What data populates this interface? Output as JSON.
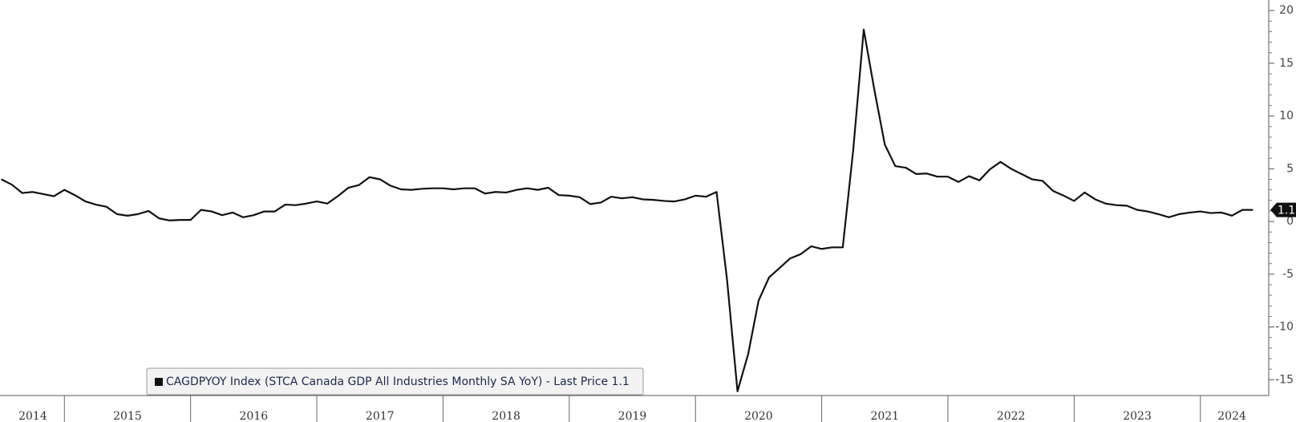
{
  "chart_data": {
    "type": "line",
    "x": [
      2014.5,
      2014.583,
      2014.667,
      2014.75,
      2014.833,
      2014.917,
      2015.0,
      2015.083,
      2015.167,
      2015.25,
      2015.333,
      2015.417,
      2015.5,
      2015.583,
      2015.667,
      2015.75,
      2015.833,
      2015.917,
      2016.0,
      2016.083,
      2016.167,
      2016.25,
      2016.333,
      2016.417,
      2016.5,
      2016.583,
      2016.667,
      2016.75,
      2016.833,
      2016.917,
      2017.0,
      2017.083,
      2017.167,
      2017.25,
      2017.333,
      2017.417,
      2017.5,
      2017.583,
      2017.667,
      2017.75,
      2017.833,
      2017.917,
      2018.0,
      2018.083,
      2018.167,
      2018.25,
      2018.333,
      2018.417,
      2018.5,
      2018.583,
      2018.667,
      2018.75,
      2018.833,
      2018.917,
      2019.0,
      2019.083,
      2019.167,
      2019.25,
      2019.333,
      2019.417,
      2019.5,
      2019.583,
      2019.667,
      2019.75,
      2019.833,
      2019.917,
      2020.0,
      2020.083,
      2020.167,
      2020.25,
      2020.333,
      2020.417,
      2020.5,
      2020.583,
      2020.667,
      2020.75,
      2020.833,
      2020.917,
      2021.0,
      2021.083,
      2021.167,
      2021.25,
      2021.333,
      2021.417,
      2021.5,
      2021.583,
      2021.667,
      2021.75,
      2021.833,
      2021.917,
      2022.0,
      2022.083,
      2022.167,
      2022.25,
      2022.333,
      2022.417,
      2022.5,
      2022.583,
      2022.667,
      2022.75,
      2022.833,
      2022.917,
      2023.0,
      2023.083,
      2023.167,
      2023.25,
      2023.333,
      2023.417,
      2023.5,
      2023.583,
      2023.667,
      2023.75,
      2023.833,
      2023.917,
      2024.0,
      2024.083,
      2024.167,
      2024.25,
      2024.333,
      2024.417
    ],
    "series": [
      {
        "name": "CAGDPYOY Index (STCA Canada GDP All Industries Monthly SA YoY) - Last Price 1.1",
        "color": "#111111",
        "values": [
          4.0,
          3.5,
          2.7,
          2.8,
          2.6,
          2.4,
          3.0,
          2.5,
          1.9,
          1.6,
          1.4,
          0.7,
          0.55,
          0.7,
          1.0,
          0.3,
          0.1,
          0.15,
          0.15,
          1.1,
          0.95,
          0.6,
          0.85,
          0.4,
          0.6,
          0.95,
          0.95,
          1.6,
          1.55,
          1.7,
          1.9,
          1.7,
          2.4,
          3.2,
          3.45,
          4.2,
          4.0,
          3.4,
          3.05,
          3.0,
          3.1,
          3.15,
          3.15,
          3.05,
          3.15,
          3.15,
          2.65,
          2.8,
          2.75,
          3.0,
          3.15,
          3.0,
          3.2,
          2.5,
          2.45,
          2.3,
          1.65,
          1.8,
          2.35,
          2.2,
          2.3,
          2.1,
          2.05,
          1.95,
          1.9,
          2.1,
          2.45,
          2.35,
          2.8,
          -5.5,
          -16.1,
          -12.6,
          -7.5,
          -5.3,
          -4.4,
          -3.5,
          -3.1,
          -2.35,
          -2.6,
          -2.45,
          -2.45,
          6.8,
          18.2,
          12.5,
          7.3,
          5.25,
          5.1,
          4.5,
          4.55,
          4.25,
          4.25,
          3.75,
          4.3,
          3.9,
          4.95,
          5.65,
          5.0,
          4.5,
          4.0,
          3.85,
          2.9,
          2.45,
          1.95,
          2.75,
          2.1,
          1.7,
          1.55,
          1.5,
          1.1,
          0.95,
          0.7,
          0.4,
          0.7,
          0.85,
          0.95,
          0.8,
          0.85,
          0.55,
          1.1,
          1.1
        ],
        "last_value_label": "1.1"
      }
    ],
    "xlim": [
      2014.49,
      2024.51
    ],
    "xticks": [
      {
        "value": 2014.75,
        "label": "2014"
      },
      {
        "value": 2015.5,
        "label": "2015"
      },
      {
        "value": 2016.5,
        "label": "2016"
      },
      {
        "value": 2017.5,
        "label": "2017"
      },
      {
        "value": 2018.5,
        "label": "2018"
      },
      {
        "value": 2019.5,
        "label": "2019"
      },
      {
        "value": 2020.5,
        "label": "2020"
      },
      {
        "value": 2021.5,
        "label": "2021"
      },
      {
        "value": 2022.5,
        "label": "2022"
      },
      {
        "value": 2023.5,
        "label": "2023"
      },
      {
        "value": 2024.25,
        "label": "2024"
      }
    ],
    "ylim": [
      -16.5,
      21
    ],
    "yticks": [
      20,
      15,
      10,
      5,
      0,
      -5,
      -10,
      -15
    ],
    "y_axis_side": "right",
    "legend": "bottom-left"
  }
}
